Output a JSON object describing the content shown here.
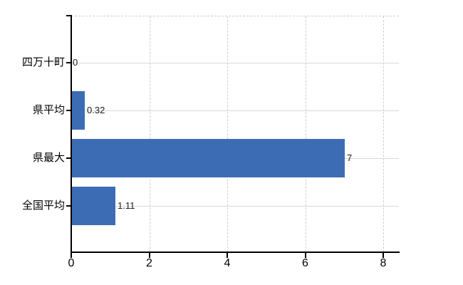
{
  "chart_data": {
    "type": "bar",
    "orientation": "horizontal",
    "title": "",
    "xlabel": "",
    "ylabel": "",
    "categories": [
      "四万十町",
      "県平均",
      "県最大",
      "全国平均"
    ],
    "values": [
      0,
      0.32,
      7,
      1.11
    ],
    "value_labels": [
      "0",
      "0.32",
      "7",
      "1.11"
    ],
    "x_tick_labels": [
      "0",
      "2",
      "4",
      "6",
      "8"
    ],
    "xticks": [
      0,
      2,
      4,
      6,
      8
    ],
    "xlim": [
      0,
      8.4
    ],
    "grid": "on",
    "legend": "none",
    "colors": {
      "bar": "#3c6db4",
      "h_gridline": "#d4dcd4",
      "v_gridline": "#d4cdd3",
      "plot_top_border": "#cfcfcf",
      "axis": "#000000",
      "text": "#000000",
      "value_text": "#1b1b1b",
      "background": "#ffffff"
    }
  }
}
